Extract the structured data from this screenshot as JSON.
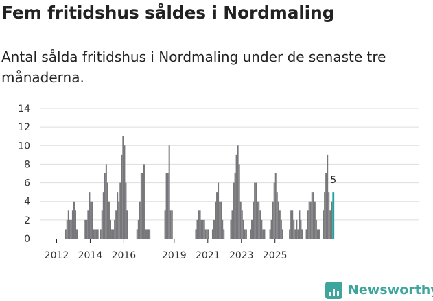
{
  "title": "Fem fritidshus såldes i Nordmaling",
  "subtitle": "Antal sålda fritidshus i Nordmaling under de senaste tre månaderna.",
  "logo": {
    "text": "Newsworthy",
    "icon": "bar-chart-logo-icon"
  },
  "colors": {
    "bar": "#77767a",
    "highlight": "#23a39d",
    "grid": "#dddddd",
    "axis": "#222222",
    "logo": "#3da59b"
  },
  "chart_data": {
    "type": "bar",
    "title": "Fem fritidshus såldes i Nordmaling",
    "subtitle": "Antal sålda fritidshus i Nordmaling under de senaste tre månaderna.",
    "xlabel": "",
    "ylabel": "",
    "ylim": [
      0,
      14
    ],
    "yticks": [
      0,
      2,
      4,
      6,
      8,
      10,
      12,
      14
    ],
    "xticks": [
      "2012",
      "2014",
      "2016",
      "2019",
      "2021",
      "2023",
      "2025"
    ],
    "x_start": "2011-01",
    "grid": true,
    "highlight_last": true,
    "last_value_label": "5",
    "note": "Rullande tremånaderssummor, en stapel per månad; värden avlästa från diagrammet",
    "values": [
      0,
      0,
      0,
      0,
      0,
      0,
      0,
      0,
      0,
      0,
      0,
      0,
      0,
      0,
      0,
      0,
      0,
      0,
      1,
      2,
      3,
      2,
      2,
      3,
      4,
      3,
      1,
      0,
      0,
      0,
      0,
      0,
      2,
      2,
      3,
      5,
      4,
      4,
      1,
      1,
      1,
      1,
      0,
      1,
      3,
      5,
      7,
      8,
      6,
      4,
      2,
      1,
      1,
      2,
      3,
      5,
      4,
      6,
      9,
      11,
      10,
      6,
      3,
      0,
      0,
      0,
      0,
      0,
      0,
      1,
      2,
      4,
      7,
      7,
      8,
      1,
      1,
      1,
      1,
      0,
      0,
      0,
      0,
      0,
      0,
      0,
      0,
      0,
      0,
      3,
      7,
      7,
      10,
      3,
      3,
      0,
      0,
      0,
      0,
      0,
      0,
      0,
      0,
      0,
      0,
      0,
      0,
      0,
      0,
      0,
      0,
      1,
      2,
      3,
      3,
      2,
      2,
      2,
      1,
      1,
      1,
      0,
      0,
      1,
      2,
      4,
      5,
      6,
      4,
      4,
      2,
      1,
      0,
      0,
      0,
      0,
      2,
      3,
      6,
      7,
      9,
      10,
      8,
      4,
      3,
      2,
      1,
      1,
      0,
      0,
      1,
      2,
      4,
      6,
      6,
      4,
      4,
      3,
      2,
      1,
      1,
      0,
      0,
      0,
      1,
      2,
      4,
      6,
      7,
      5,
      4,
      3,
      2,
      1,
      0,
      0,
      0,
      0,
      1,
      3,
      3,
      2,
      1,
      2,
      1,
      3,
      2,
      1,
      0,
      0,
      1,
      3,
      4,
      4,
      5,
      5,
      4,
      2,
      1,
      1,
      0,
      0,
      3,
      5,
      7,
      9,
      5,
      3,
      4,
      5
    ]
  }
}
